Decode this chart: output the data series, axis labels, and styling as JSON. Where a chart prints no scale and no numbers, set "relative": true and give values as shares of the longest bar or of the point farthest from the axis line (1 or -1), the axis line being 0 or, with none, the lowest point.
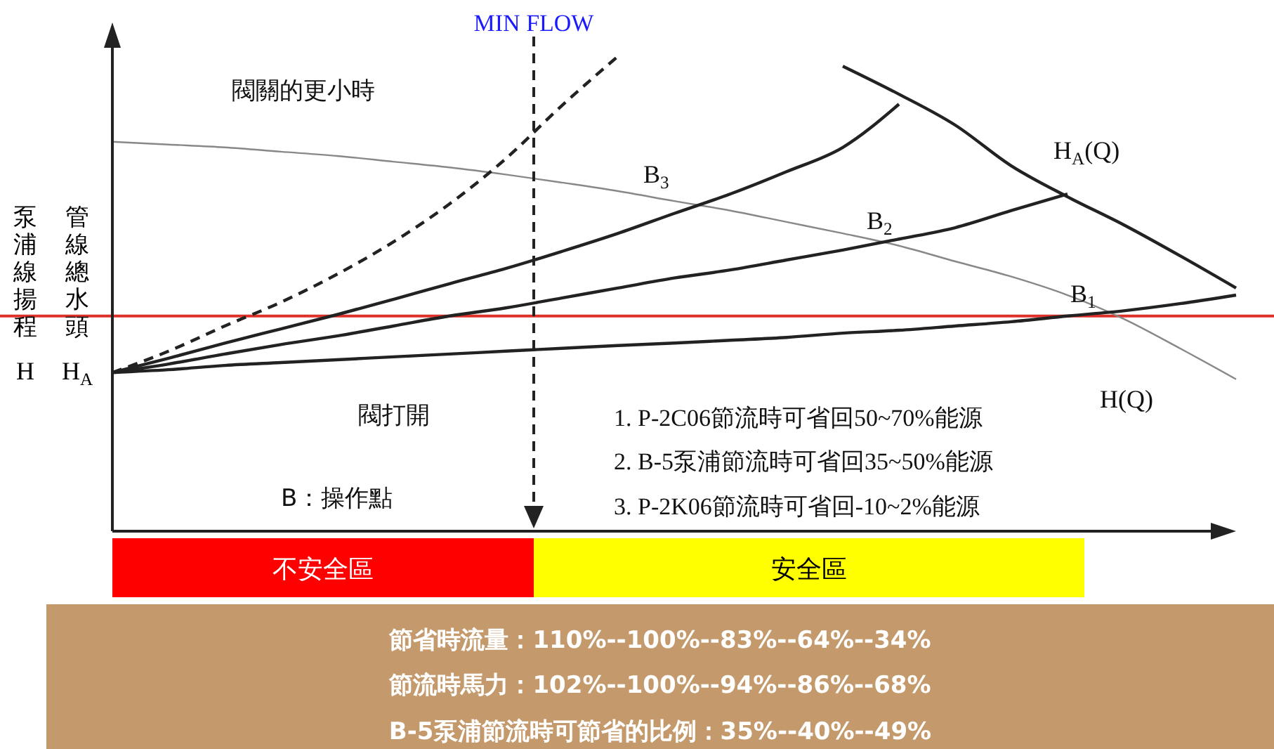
{
  "chart_data": {
    "type": "line",
    "relative": true,
    "ylabel": "泵浦線揚程 H",
    "categories": [
      null,
      null,
      null,
      null,
      null,
      null,
      null,
      null,
      null,
      null,
      null,
      null,
      null,
      null,
      null,
      null,
      null,
      null,
      null,
      null,
      null
    ],
    "series": [
      {
        "color": "#888888",
        "values": [
          0.82,
          0.814,
          0.808,
          0.799,
          0.79,
          0.778,
          0.766,
          0.751,
          0.734,
          0.716,
          0.695,
          0.675,
          0.651,
          0.627,
          0.601,
          0.568,
          0.536,
          0.497,
          0.447,
          0.385,
          0.32
        ]
      },
      {
        "color": "#222222",
        "values": [
          0.334,
          0.34,
          0.349,
          0.355,
          0.361,
          0.367,
          0.373,
          0.379,
          0.385,
          0.391,
          0.396,
          0.402,
          0.408,
          0.417,
          0.423,
          0.432,
          0.441,
          0.453,
          0.464,
          0.479,
          0.497
        ]
      },
      {
        "color": "#222222",
        "values": [
          0.334,
          0.352,
          0.373,
          0.393,
          0.411,
          0.432,
          0.453,
          0.47,
          0.491,
          0.512,
          0.533,
          0.55,
          0.571,
          0.592,
          0.615,
          0.639,
          0.675,
          0.71,
          null,
          null,
          null
        ]
      },
      {
        "color": "#222222",
        "values": [
          0.334,
          0.364,
          0.396,
          0.426,
          0.456,
          0.488,
          0.521,
          0.553,
          0.589,
          0.627,
          0.669,
          0.71,
          0.757,
          0.808,
          0.899,
          null,
          null,
          null,
          null,
          null,
          null
        ]
      },
      {
        "color": "#222222",
        "line_style": "dashed",
        "values": [
          0.334,
          0.379,
          0.432,
          0.482,
          0.541,
          0.609,
          0.689,
          0.784,
          0.896,
          1.0,
          null,
          null,
          null,
          null,
          null,
          null,
          null,
          null,
          null,
          null,
          null
        ]
      },
      {
        "color": "#222222",
        "values": [
          null,
          null,
          null,
          null,
          null,
          null,
          null,
          null,
          null,
          null,
          null,
          null,
          null,
          0.979,
          0.92,
          0.855,
          0.769,
          0.704,
          0.645,
          0.58,
          0.512
        ]
      }
    ],
    "ref_lines": [
      {
        "axis": "y",
        "value": 0.453,
        "color": "#e0302a"
      }
    ],
    "annotations": [
      "閥關的更小時",
      "B$_{3}$",
      "B$_{2}$",
      "B$_{1}$",
      "H$_{A}$(Q)",
      "H(Q)",
      "閥打開",
      "B：操作點",
      "1. P-2C06節流時可省回50~70%能源",
      "2. B-5泵浦節流時可省回35~50%能源",
      "3. P-2K06節流時可省回-10~2%能源",
      "管線總水頭 H$_{A}$",
      "節省時流量：110%--100%--83%--64%--34%",
      "節流時馬力：102%--100%--94%--86%--68%",
      "B-5泵浦節流時可節省的比例：35%--40%--49%",
      "MIN FLOW",
      "不安全區",
      "安全區"
    ]
  }
}
